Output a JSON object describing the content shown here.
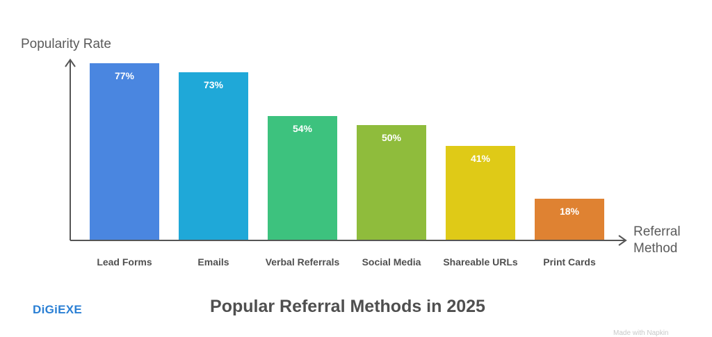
{
  "chart_data": {
    "type": "bar",
    "title": "Popular Referral Methods in 2025",
    "xlabel": "Referral Method",
    "ylabel": "Popularity Rate",
    "categories": [
      "Lead Forms",
      "Emails",
      "Verbal Referrals",
      "Social Media",
      "Shareable URLs",
      "Print Cards"
    ],
    "values": [
      77,
      73,
      54,
      50,
      41,
      18
    ],
    "value_labels": [
      "77%",
      "73%",
      "54%",
      "50%",
      "41%",
      "18%"
    ],
    "colors": [
      "#4a86e0",
      "#1fa8d8",
      "#3dc27e",
      "#8fbc3c",
      "#dfca17",
      "#df8232"
    ],
    "ylim": [
      0,
      80
    ],
    "grid": false,
    "legend": "none",
    "unit": "%"
  },
  "branding": {
    "logo_text": "DiGiEXE",
    "watermark": "Made with Napkin"
  }
}
